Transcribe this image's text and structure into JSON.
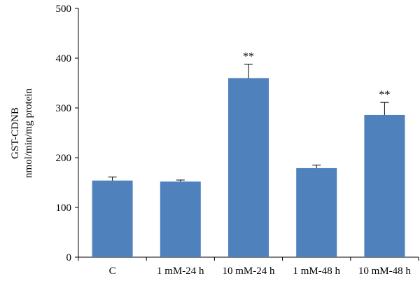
{
  "chart_data": {
    "type": "bar",
    "title": "",
    "xlabel": "",
    "ylabel_lines": [
      "GST-CDNB",
      "nmol/min/mg protein"
    ],
    "categories": [
      "C",
      "1 mM-24 h",
      "10 mM-24 h",
      "1 mM-48 h",
      "10 mM-48 h"
    ],
    "values": [
      154,
      152,
      360,
      179,
      286
    ],
    "errors": [
      7,
      3,
      28,
      6,
      25
    ],
    "annotations": [
      "",
      "",
      "**",
      "",
      "**"
    ],
    "ylim": [
      0,
      500
    ],
    "yticks": [
      0,
      100,
      200,
      300,
      400,
      500
    ],
    "grid": false,
    "bar_color": "#4f81bd"
  }
}
